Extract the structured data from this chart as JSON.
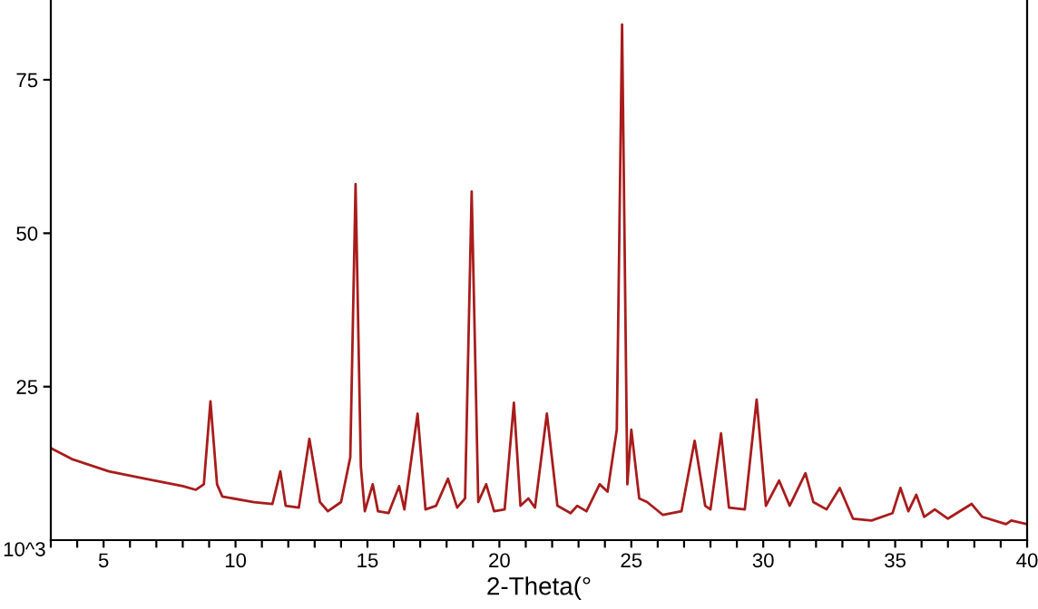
{
  "chart_data": {
    "type": "line",
    "xlabel": "2-Theta(°",
    "ylabel": "10^3",
    "x": [
      3.0,
      3.8,
      5.2,
      6.6,
      8.0,
      8.5,
      8.8,
      9.05,
      9.3,
      9.5,
      10.7,
      11.4,
      11.7,
      11.9,
      12.4,
      12.8,
      13.2,
      13.5,
      14.0,
      14.35,
      14.55,
      14.75,
      14.9,
      15.2,
      15.4,
      15.8,
      16.2,
      16.4,
      16.9,
      17.2,
      17.6,
      18.05,
      18.4,
      18.7,
      18.95,
      19.2,
      19.5,
      19.8,
      20.2,
      20.55,
      20.8,
      21.1,
      21.35,
      21.8,
      22.2,
      22.7,
      22.95,
      23.3,
      23.8,
      24.1,
      24.45,
      24.65,
      24.85,
      25.0,
      25.3,
      25.6,
      26.2,
      26.9,
      27.4,
      27.8,
      28.0,
      28.4,
      28.7,
      29.3,
      29.75,
      30.1,
      30.6,
      31.0,
      31.6,
      31.9,
      32.4,
      32.9,
      33.4,
      34.1,
      34.9,
      35.2,
      35.5,
      35.8,
      36.1,
      36.5,
      37.0,
      37.9,
      38.3,
      39.2,
      39.4,
      40.0
    ],
    "series": [
      {
        "color": "#a81c1c",
        "values": [
          15.0,
          13.2,
          11.2,
          10.0,
          8.8,
          8.2,
          9.1,
          22.6,
          9.1,
          7.1,
          6.2,
          5.9,
          11.2,
          5.6,
          5.3,
          16.5,
          6.2,
          4.7,
          6.2,
          13.5,
          58,
          12,
          4.7,
          9.1,
          4.7,
          4.4,
          8.8,
          5,
          20.6,
          5,
          5.6,
          10,
          5.3,
          6.8,
          56.8,
          6.2,
          9.1,
          4.7,
          5,
          22.4,
          5.6,
          6.8,
          5.3,
          20.6,
          5.6,
          4.4,
          5.6,
          4.7,
          9.1,
          7.9,
          18,
          84,
          9.1,
          18,
          6.8,
          6.2,
          4.1,
          4.7,
          16.2,
          5.6,
          5,
          17.4,
          5.3,
          5,
          22.9,
          5.6,
          9.7,
          5.6,
          10.9,
          6.2,
          5,
          8.5,
          3.5,
          3.2,
          4.4,
          8.5,
          4.7,
          7.4,
          3.8,
          5,
          3.5,
          5.9,
          3.8,
          2.6,
          3.2,
          2.6
        ]
      }
    ],
    "xlim": [
      3,
      40
    ],
    "ylim": [
      0,
      88
    ],
    "xticks": [
      {
        "value": 3,
        "label": null
      },
      {
        "value": 4,
        "label": null
      },
      5,
      {
        "value": 6,
        "label": null
      },
      {
        "value": 7,
        "label": null
      },
      {
        "value": 8,
        "label": null
      },
      {
        "value": 9,
        "label": null
      },
      10,
      {
        "value": 11,
        "label": null
      },
      {
        "value": 12,
        "label": null
      },
      {
        "value": 13,
        "label": null
      },
      {
        "value": 14,
        "label": null
      },
      15,
      {
        "value": 16,
        "label": null
      },
      {
        "value": 17,
        "label": null
      },
      {
        "value": 18,
        "label": null
      },
      {
        "value": 19,
        "label": null
      },
      20,
      {
        "value": 21,
        "label": null
      },
      {
        "value": 22,
        "label": null
      },
      {
        "value": 23,
        "label": null
      },
      {
        "value": 24,
        "label": null
      },
      25,
      {
        "value": 26,
        "label": null
      },
      {
        "value": 27,
        "label": null
      },
      {
        "value": 28,
        "label": null
      },
      {
        "value": 29,
        "label": null
      },
      30,
      {
        "value": 31,
        "label": null
      },
      {
        "value": 32,
        "label": null
      },
      {
        "value": 33,
        "label": null
      },
      {
        "value": 34,
        "label": null
      },
      35,
      {
        "value": 36,
        "label": null
      },
      {
        "value": 37,
        "label": null
      },
      {
        "value": 38,
        "label": null
      },
      {
        "value": 39,
        "label": null
      },
      40
    ],
    "yticks": [
      25,
      50,
      75
    ],
    "grid": false,
    "legend": false,
    "marker": "none",
    "line_style": "solid"
  }
}
